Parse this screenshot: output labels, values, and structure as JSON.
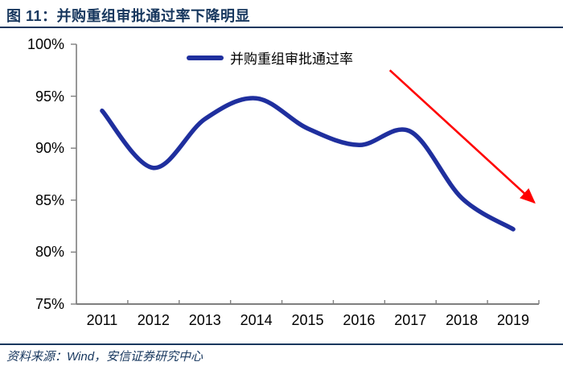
{
  "header": {
    "title": "图 11：并购重组审批通过率下降明显"
  },
  "legend": {
    "label": "并购重组审批通过率"
  },
  "source": {
    "text": "资料来源：Wind，安信证券研究中心"
  },
  "colors": {
    "navy": "#17375e",
    "line_blue": "#1f2f9e",
    "arrow_red": "#ff0000",
    "axis_gray": "#7f7f7f",
    "tick_text": "#000000"
  },
  "chart_data": {
    "type": "line",
    "title": "并购重组审批通过率下降明显",
    "categories": [
      "2011",
      "2012",
      "2013",
      "2014",
      "2015",
      "2016",
      "2017",
      "2018",
      "2019"
    ],
    "series": [
      {
        "name": "并购重组审批通过率",
        "values": [
          93.6,
          88.1,
          92.8,
          94.8,
          91.9,
          90.3,
          91.6,
          85.2,
          82.2
        ]
      }
    ],
    "unit": "%",
    "ylim": [
      75,
      100
    ],
    "ytick_step": 5,
    "ytick_labels": [
      "75%",
      "80%",
      "85%",
      "90%",
      "95%",
      "100%"
    ],
    "grid": false,
    "smooth": true,
    "legend_position": "top-center",
    "annotation": {
      "type": "arrow",
      "color": "#ff0000",
      "from": {
        "year": 2016.6,
        "value": 97.5
      },
      "to": {
        "year": 2019.6,
        "value": 84.0
      }
    }
  }
}
